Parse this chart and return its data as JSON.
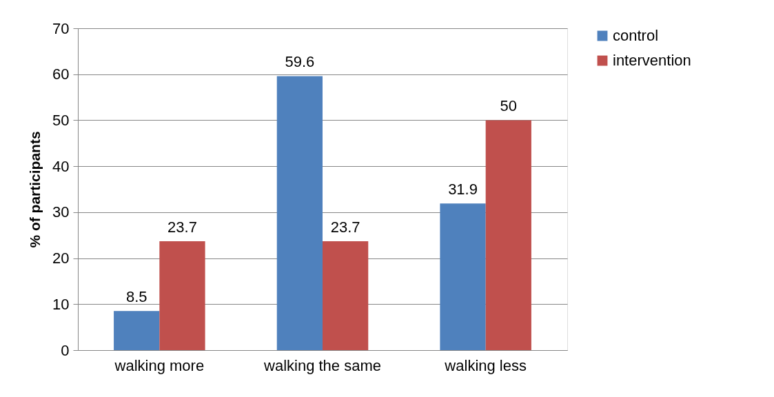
{
  "chart_data": {
    "type": "bar",
    "ylabel": "% of participants",
    "categories": [
      "walking more",
      "walking the same",
      "walking less"
    ],
    "series": [
      {
        "name": "control",
        "color": "#4f81bd",
        "values": [
          8.5,
          59.6,
          31.9
        ]
      },
      {
        "name": "intervention",
        "color": "#c0504d",
        "values": [
          23.7,
          23.7,
          50
        ]
      }
    ],
    "ylim": [
      0,
      70
    ],
    "yticks": [
      0,
      10,
      20,
      30,
      40,
      50,
      60,
      70
    ],
    "grid": "y",
    "legend": "right",
    "data_labels": true
  }
}
